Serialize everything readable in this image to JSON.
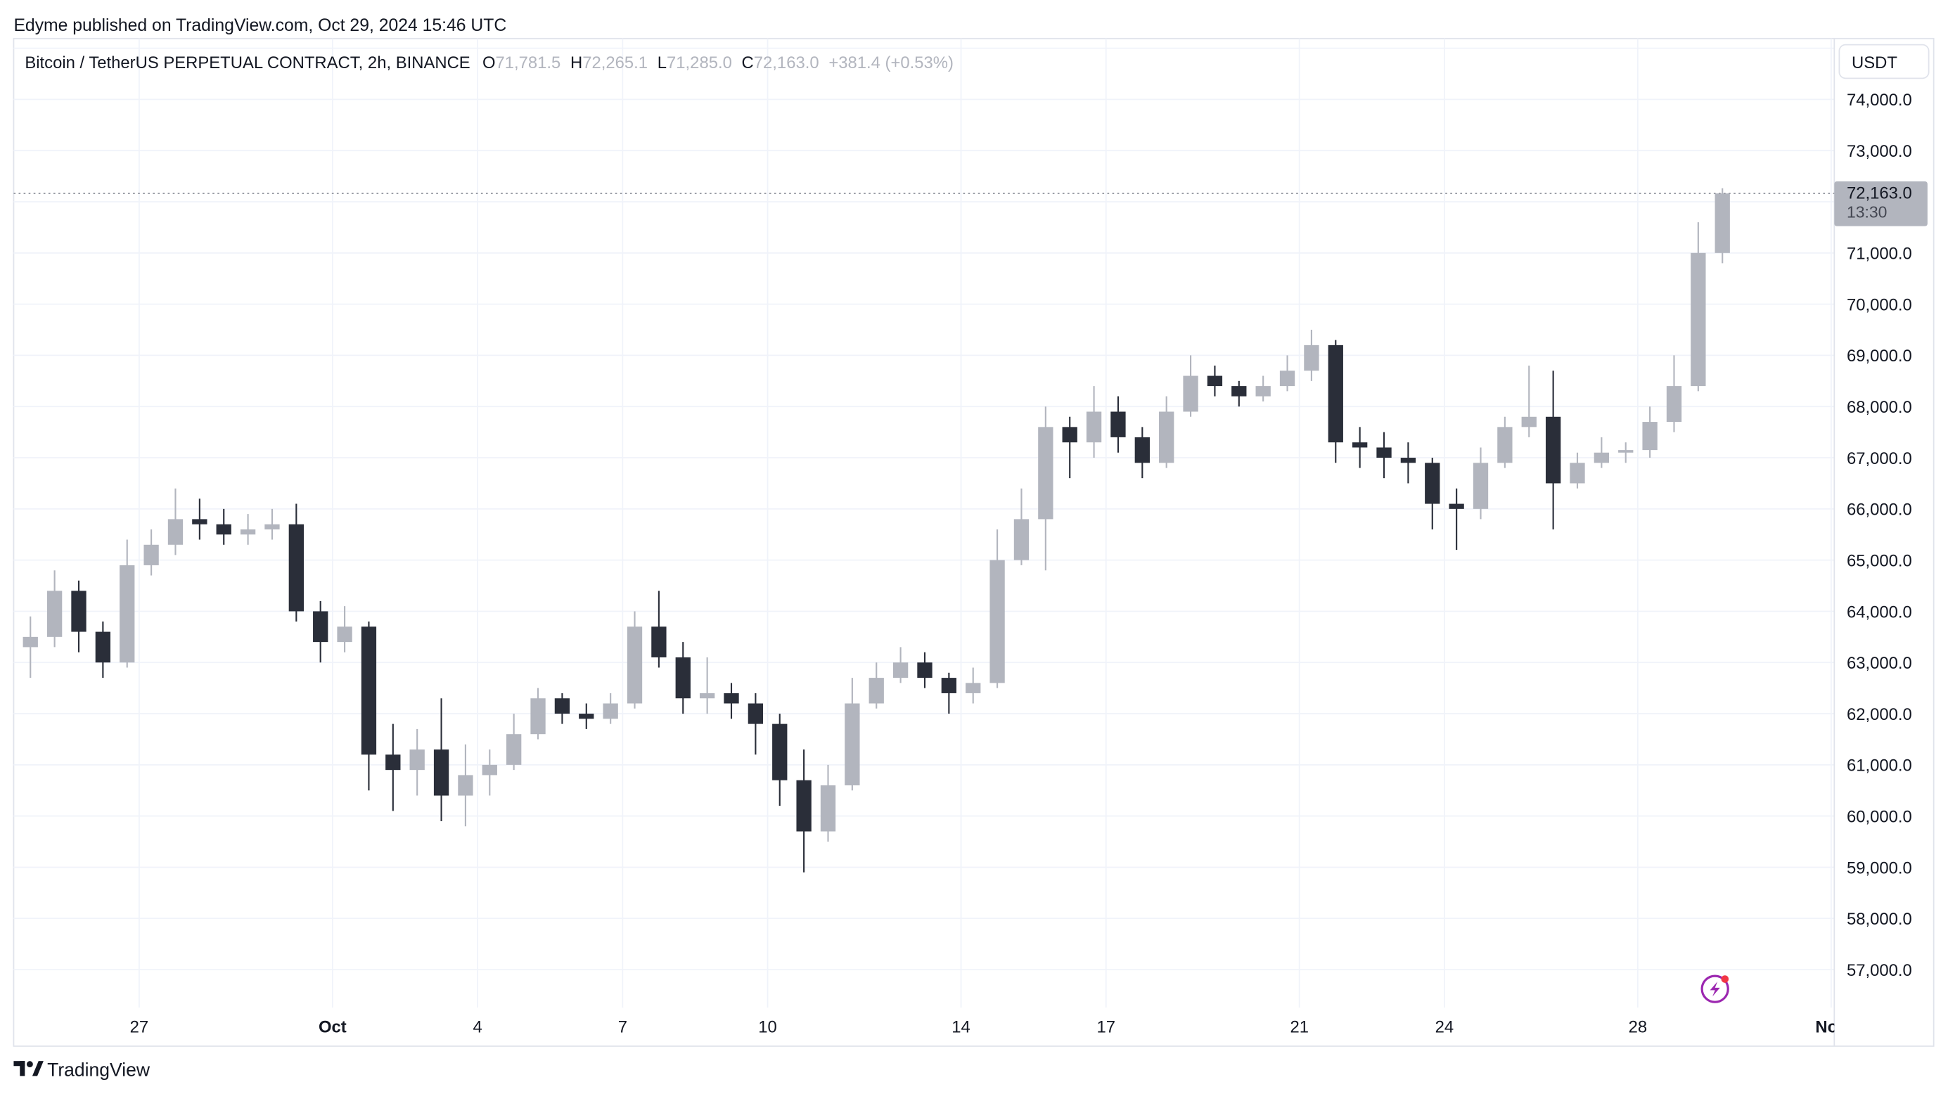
{
  "header": {
    "published": "Edyme published on TradingView.com, Oct 29, 2024 15:46 UTC"
  },
  "legend": {
    "symbol": "Bitcoin / TetherUS PERPETUAL CONTRACT, 2h, BINANCE",
    "o_label": "O",
    "o_value": "71,781.5",
    "h_label": "H",
    "h_value": "72,265.1",
    "l_label": "L",
    "l_value": "71,285.0",
    "c_label": "C",
    "c_value": "72,163.0",
    "change": "+381.4 (+0.53%)"
  },
  "price_axis": {
    "currency_button": "USDT",
    "labels": [
      "74,000.0",
      "73,000.0",
      "71,000.0",
      "70,000.0",
      "69,000.0",
      "68,000.0",
      "67,000.0",
      "66,000.0",
      "65,000.0",
      "64,000.0",
      "63,000.0",
      "62,000.0",
      "61,000.0",
      "60,000.0",
      "59,000.0",
      "58,000.0",
      "57,000.0"
    ],
    "current_price": "72,163.0",
    "countdown": "13:30"
  },
  "time_axis": {
    "labels": [
      {
        "text": "27",
        "date": "2024-09-27",
        "bold": false
      },
      {
        "text": "Oct",
        "date": "2024-10-01",
        "bold": true
      },
      {
        "text": "4",
        "date": "2024-10-04",
        "bold": false
      },
      {
        "text": "7",
        "date": "2024-10-07",
        "bold": false
      },
      {
        "text": "10",
        "date": "2024-10-10",
        "bold": false
      },
      {
        "text": "14",
        "date": "2024-10-14",
        "bold": false
      },
      {
        "text": "17",
        "date": "2024-10-17",
        "bold": false
      },
      {
        "text": "21",
        "date": "2024-10-21",
        "bold": false
      },
      {
        "text": "24",
        "date": "2024-10-24",
        "bold": false
      },
      {
        "text": "28",
        "date": "2024-10-28",
        "bold": false
      },
      {
        "text": "Nov",
        "date": "2024-11-01",
        "bold": true
      }
    ]
  },
  "footer": {
    "logo_text": "TradingView"
  },
  "colors": {
    "up": "#b2b5be",
    "down": "#2a2e39",
    "grid": "#f0f3fa",
    "border": "#e0e3eb",
    "text": "#131722",
    "accent": "#9c27b0"
  },
  "chart_data": {
    "type": "candlestick",
    "title": "Bitcoin / TetherUS PERPETUAL CONTRACT, 2h, BINANCE",
    "ylim": [
      56500,
      75000
    ],
    "grid": true,
    "current_price": 72163.0,
    "candles": [
      [
        "2024-09-24 12:00",
        63300,
        63900,
        62700,
        63500
      ],
      [
        "2024-09-25 00:00",
        63500,
        64800,
        63300,
        64400
      ],
      [
        "2024-09-25 12:00",
        64400,
        64600,
        63200,
        63600
      ],
      [
        "2024-09-26 00:00",
        63600,
        63800,
        62700,
        63000
      ],
      [
        "2024-09-26 12:00",
        63000,
        65400,
        62900,
        64900
      ],
      [
        "2024-09-27 00:00",
        64900,
        65600,
        64700,
        65300
      ],
      [
        "2024-09-27 12:00",
        65300,
        66400,
        65100,
        65800
      ],
      [
        "2024-09-28 00:00",
        65800,
        66200,
        65400,
        65700
      ],
      [
        "2024-09-28 12:00",
        65700,
        66000,
        65300,
        65500
      ],
      [
        "2024-09-29 00:00",
        65500,
        65900,
        65300,
        65600
      ],
      [
        "2024-09-29 12:00",
        65600,
        66000,
        65400,
        65700
      ],
      [
        "2024-09-30 00:00",
        65700,
        66100,
        63800,
        64000
      ],
      [
        "2024-09-30 12:00",
        64000,
        64200,
        63000,
        63400
      ],
      [
        "2024-10-01 00:00",
        63400,
        64100,
        63200,
        63700
      ],
      [
        "2024-10-01 12:00",
        63700,
        63800,
        60500,
        61200
      ],
      [
        "2024-10-02 00:00",
        61200,
        61800,
        60100,
        60900
      ],
      [
        "2024-10-02 12:00",
        60900,
        61700,
        60400,
        61300
      ],
      [
        "2024-10-03 00:00",
        61300,
        62300,
        59900,
        60400
      ],
      [
        "2024-10-03 12:00",
        60400,
        61400,
        59800,
        60800
      ],
      [
        "2024-10-04 00:00",
        60800,
        61300,
        60400,
        61000
      ],
      [
        "2024-10-04 12:00",
        61000,
        62000,
        60900,
        61600
      ],
      [
        "2024-10-05 00:00",
        61600,
        62500,
        61500,
        62300
      ],
      [
        "2024-10-05 12:00",
        62300,
        62400,
        61800,
        62000
      ],
      [
        "2024-10-06 00:00",
        62000,
        62200,
        61700,
        61900
      ],
      [
        "2024-10-06 12:00",
        61900,
        62400,
        61800,
        62200
      ],
      [
        "2024-10-07 00:00",
        62200,
        64000,
        62100,
        63700
      ],
      [
        "2024-10-07 12:00",
        63700,
        64400,
        62900,
        63100
      ],
      [
        "2024-10-08 00:00",
        63100,
        63400,
        62000,
        62300
      ],
      [
        "2024-10-08 12:00",
        62300,
        63100,
        62000,
        62400
      ],
      [
        "2024-10-09 00:00",
        62400,
        62600,
        61900,
        62200
      ],
      [
        "2024-10-09 12:00",
        62200,
        62400,
        61200,
        61800
      ],
      [
        "2024-10-10 00:00",
        61800,
        62000,
        60200,
        60700
      ],
      [
        "2024-10-10 12:00",
        60700,
        61300,
        58900,
        59700
      ],
      [
        "2024-10-11 00:00",
        59700,
        61000,
        59500,
        60600
      ],
      [
        "2024-10-11 12:00",
        60600,
        62700,
        60500,
        62200
      ],
      [
        "2024-10-12 00:00",
        62200,
        63000,
        62100,
        62700
      ],
      [
        "2024-10-12 12:00",
        62700,
        63300,
        62600,
        63000
      ],
      [
        "2024-10-13 00:00",
        63000,
        63200,
        62500,
        62700
      ],
      [
        "2024-10-13 12:00",
        62700,
        62800,
        62000,
        62400
      ],
      [
        "2024-10-14 00:00",
        62400,
        62900,
        62200,
        62600
      ],
      [
        "2024-10-14 12:00",
        62600,
        65600,
        62500,
        65000
      ],
      [
        "2024-10-15 00:00",
        65000,
        66400,
        64900,
        65800
      ],
      [
        "2024-10-15 12:00",
        65800,
        68000,
        64800,
        67600
      ],
      [
        "2024-10-16 00:00",
        67600,
        67800,
        66600,
        67300
      ],
      [
        "2024-10-16 12:00",
        67300,
        68400,
        67000,
        67900
      ],
      [
        "2024-10-17 00:00",
        67900,
        68200,
        67100,
        67400
      ],
      [
        "2024-10-17 12:00",
        67400,
        67600,
        66600,
        66900
      ],
      [
        "2024-10-18 00:00",
        66900,
        68200,
        66800,
        67900
      ],
      [
        "2024-10-18 12:00",
        67900,
        69000,
        67800,
        68600
      ],
      [
        "2024-10-19 00:00",
        68600,
        68800,
        68200,
        68400
      ],
      [
        "2024-10-19 12:00",
        68400,
        68500,
        68000,
        68200
      ],
      [
        "2024-10-20 00:00",
        68200,
        68600,
        68100,
        68400
      ],
      [
        "2024-10-20 12:00",
        68400,
        69000,
        68300,
        68700
      ],
      [
        "2024-10-21 00:00",
        68700,
        69500,
        68500,
        69200
      ],
      [
        "2024-10-21 12:00",
        69200,
        69300,
        66900,
        67300
      ],
      [
        "2024-10-22 00:00",
        67300,
        67600,
        66800,
        67200
      ],
      [
        "2024-10-22 12:00",
        67200,
        67500,
        66600,
        67000
      ],
      [
        "2024-10-23 00:00",
        67000,
        67300,
        66500,
        66900
      ],
      [
        "2024-10-23 12:00",
        66900,
        67000,
        65600,
        66100
      ],
      [
        "2024-10-24 00:00",
        66100,
        66400,
        65200,
        66000
      ],
      [
        "2024-10-24 12:00",
        66000,
        67200,
        65800,
        66900
      ],
      [
        "2024-10-25 00:00",
        66900,
        67800,
        66800,
        67600
      ],
      [
        "2024-10-25 12:00",
        67600,
        68800,
        67400,
        67800
      ],
      [
        "2024-10-26 00:00",
        67800,
        68700,
        65600,
        66500
      ],
      [
        "2024-10-26 12:00",
        66500,
        67100,
        66400,
        66900
      ],
      [
        "2024-10-27 00:00",
        66900,
        67400,
        66800,
        67100
      ],
      [
        "2024-10-27 12:00",
        67100,
        67300,
        66900,
        67150
      ],
      [
        "2024-10-28 00:00",
        67150,
        68000,
        67000,
        67700
      ],
      [
        "2024-10-28 12:00",
        67700,
        69000,
        67500,
        68400
      ],
      [
        "2024-10-29 00:00",
        68400,
        71600,
        68300,
        71000
      ],
      [
        "2024-10-29 12:00",
        71000,
        72265.1,
        70800,
        72163.0
      ]
    ]
  }
}
